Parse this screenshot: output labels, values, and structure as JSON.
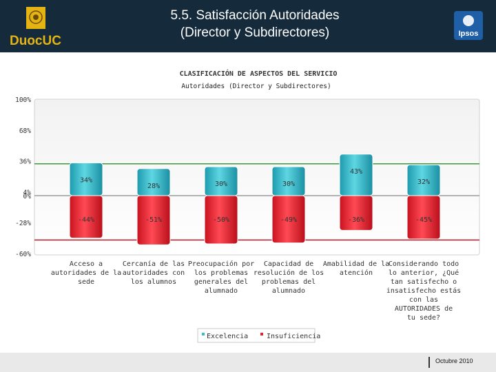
{
  "header": {
    "title_line1": "5.5. Satisfacción Autoridades",
    "title_line2": "(Director y Subdirectores)",
    "logo_left": "DuocUC",
    "logo_right": "Ipsos"
  },
  "footer": {
    "date": "Octubre 2010"
  },
  "colors": {
    "header_bg": "#152b3c",
    "excelencia": "#35c0cf",
    "insuficiencia": "#e8202f",
    "green_line": "#3a9a3a",
    "red_line": "#b01c24"
  },
  "chart_data": {
    "type": "bar",
    "title": "CLASIFICACIÓN DE ASPECTOS DEL SERVICIO",
    "subtitle": "Autoridades (Director y Subdirectores)",
    "ylim": [
      -60,
      100
    ],
    "y_ticks": [
      "100%",
      "68%",
      "36%",
      "4%",
      "0%",
      "-28%",
      "-60%"
    ],
    "y_tick_values": [
      100,
      68,
      36,
      4,
      0,
      -28,
      -60
    ],
    "reference_lines": {
      "green": 33,
      "red": -46
    },
    "categories": [
      [
        "Acceso a",
        "autoridades de la",
        "sede"
      ],
      [
        "Cercanía de las",
        "autoridades con",
        "los alumnos"
      ],
      [
        "Preocupación por",
        "los problemas",
        "generales del",
        "alumnado"
      ],
      [
        "Capacidad de",
        "resolución de los",
        "problemas del",
        "alumnado"
      ],
      [
        "Amabilidad de la",
        "atención"
      ],
      [
        "Considerando todo",
        "lo anterior, ¿Qué",
        "tan satisfecho o",
        "insatisfecho estás",
        "con las",
        "AUTORIDADES de",
        "tu sede?"
      ]
    ],
    "series": [
      {
        "name": "Excelencia",
        "values": [
          34,
          28,
          30,
          30,
          43,
          32
        ],
        "labels": [
          "34%",
          "28%",
          "30%",
          "30%",
          "43%",
          "32%"
        ]
      },
      {
        "name": "Insuficiencia",
        "values": [
          -44,
          -51,
          -50,
          -49,
          -36,
          -45
        ],
        "labels": [
          "-44%",
          "-51%",
          "-50%",
          "-49%",
          "-36%",
          "-45%"
        ]
      }
    ],
    "legend": [
      "Excelencia",
      "Insuficiencia"
    ]
  }
}
